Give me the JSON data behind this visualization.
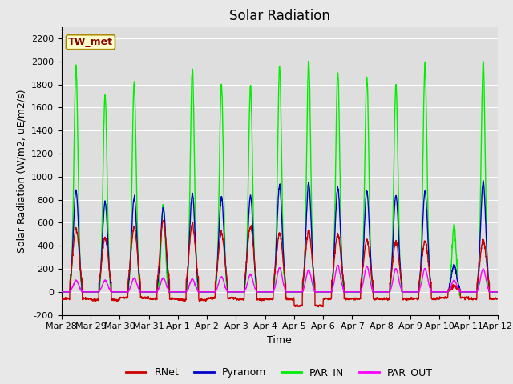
{
  "title": "Solar Radiation",
  "ylabel": "Solar Radiation (W/m2, uE/m2/s)",
  "xlabel": "Time",
  "station_label": "TW_met",
  "ylim": [
    -200,
    2300
  ],
  "yticks": [
    -200,
    0,
    200,
    400,
    600,
    800,
    1000,
    1200,
    1400,
    1600,
    1800,
    2000,
    2200
  ],
  "fig_bg_color": "#e8e8e8",
  "ax_bg_color": "#dedede",
  "grid_color": "#ffffff",
  "colors": {
    "RNet": "#cc0000",
    "Pyranom": "#0000cc",
    "PAR_IN": "#00ee00",
    "PAR_OUT": "#ff00ff"
  },
  "xtick_labels": [
    "Mar 28",
    "Mar 29",
    "Mar 30",
    "Mar 31",
    "Apr 1",
    "Apr 2",
    "Apr 3",
    "Apr 4",
    "Apr 5",
    "Apr 6",
    "Apr 7",
    "Apr 8",
    "Apr 9",
    "Apr 10",
    "Apr 11",
    "Apr 12"
  ],
  "n_days": 15,
  "day_peaks_PAR_IN": [
    1950,
    1700,
    1820,
    750,
    1940,
    1800,
    1800,
    1950,
    2000,
    1910,
    1870,
    1800,
    1970,
    580,
    2000
  ],
  "day_peaks_Pyranom": [
    880,
    780,
    820,
    730,
    850,
    820,
    830,
    920,
    940,
    900,
    870,
    840,
    870,
    230,
    950
  ],
  "day_peaks_RNet": [
    550,
    470,
    560,
    620,
    590,
    510,
    570,
    510,
    520,
    500,
    450,
    430,
    440,
    50,
    450
  ],
  "day_peaks_PAR_OUT": [
    100,
    100,
    120,
    120,
    110,
    130,
    150,
    210,
    190,
    230,
    220,
    200,
    200,
    100,
    200
  ],
  "night_RNet": [
    -60,
    -70,
    -50,
    -60,
    -70,
    -55,
    -65,
    -60,
    -120,
    -60,
    -60,
    -60,
    -60,
    -50,
    -60
  ],
  "title_fontsize": 12,
  "label_fontsize": 9,
  "tick_fontsize": 8,
  "linewidth": 1.0,
  "station_fontsize": 9
}
